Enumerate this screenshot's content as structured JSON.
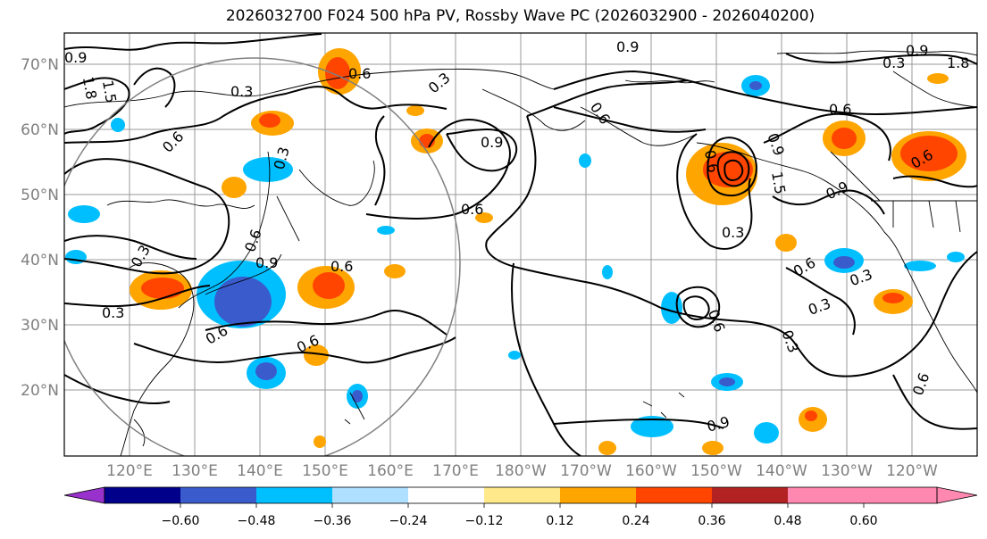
{
  "title": "2026032700 F024 500 hPa PV, Rossby Wave PC (2026032900 - 2026040200)",
  "lat_labels": [
    "70°N",
    "60°N",
    "50°N",
    "40°N",
    "30°N",
    "20°N"
  ],
  "lon_labels": [
    "120°E",
    "130°E",
    "140°E",
    "150°E",
    "160°E",
    "170°E",
    "180°W",
    "170°W",
    "160°W",
    "150°W",
    "140°W",
    "130°W",
    "120°W"
  ],
  "contour_labels": [
    "0.9",
    "1.5",
    "1.8",
    "0.3",
    "0.6",
    "0.3",
    "0.6",
    "0.3",
    "0.9",
    "0.6",
    "0.6",
    "0.9",
    "0.9",
    "0.6",
    "0.3",
    "0.6",
    "0.9",
    "0.6",
    "1.5",
    "1.8",
    "0.9",
    "0.6",
    "0.6",
    "0.6",
    "0.3",
    "0.3",
    "0.6",
    "0.6",
    "0.3",
    "0.3",
    "0.6",
    "0.6",
    "0.9",
    "0.3",
    "0.9",
    "0.3"
  ],
  "colorbar": {
    "ticks": [
      "−0.60",
      "−0.48",
      "−0.36",
      "−0.24",
      "−0.12",
      "0.12",
      "0.24",
      "0.36",
      "0.48",
      "0.60"
    ],
    "colors": [
      "#9932CC",
      "#00008B",
      "#3A5BCC",
      "#00BFFF",
      "#B0E0FF",
      "#FFFFFF",
      "#FFE98A",
      "#FFA500",
      "#FF4500",
      "#B22222",
      "#FF88B0"
    ]
  }
}
